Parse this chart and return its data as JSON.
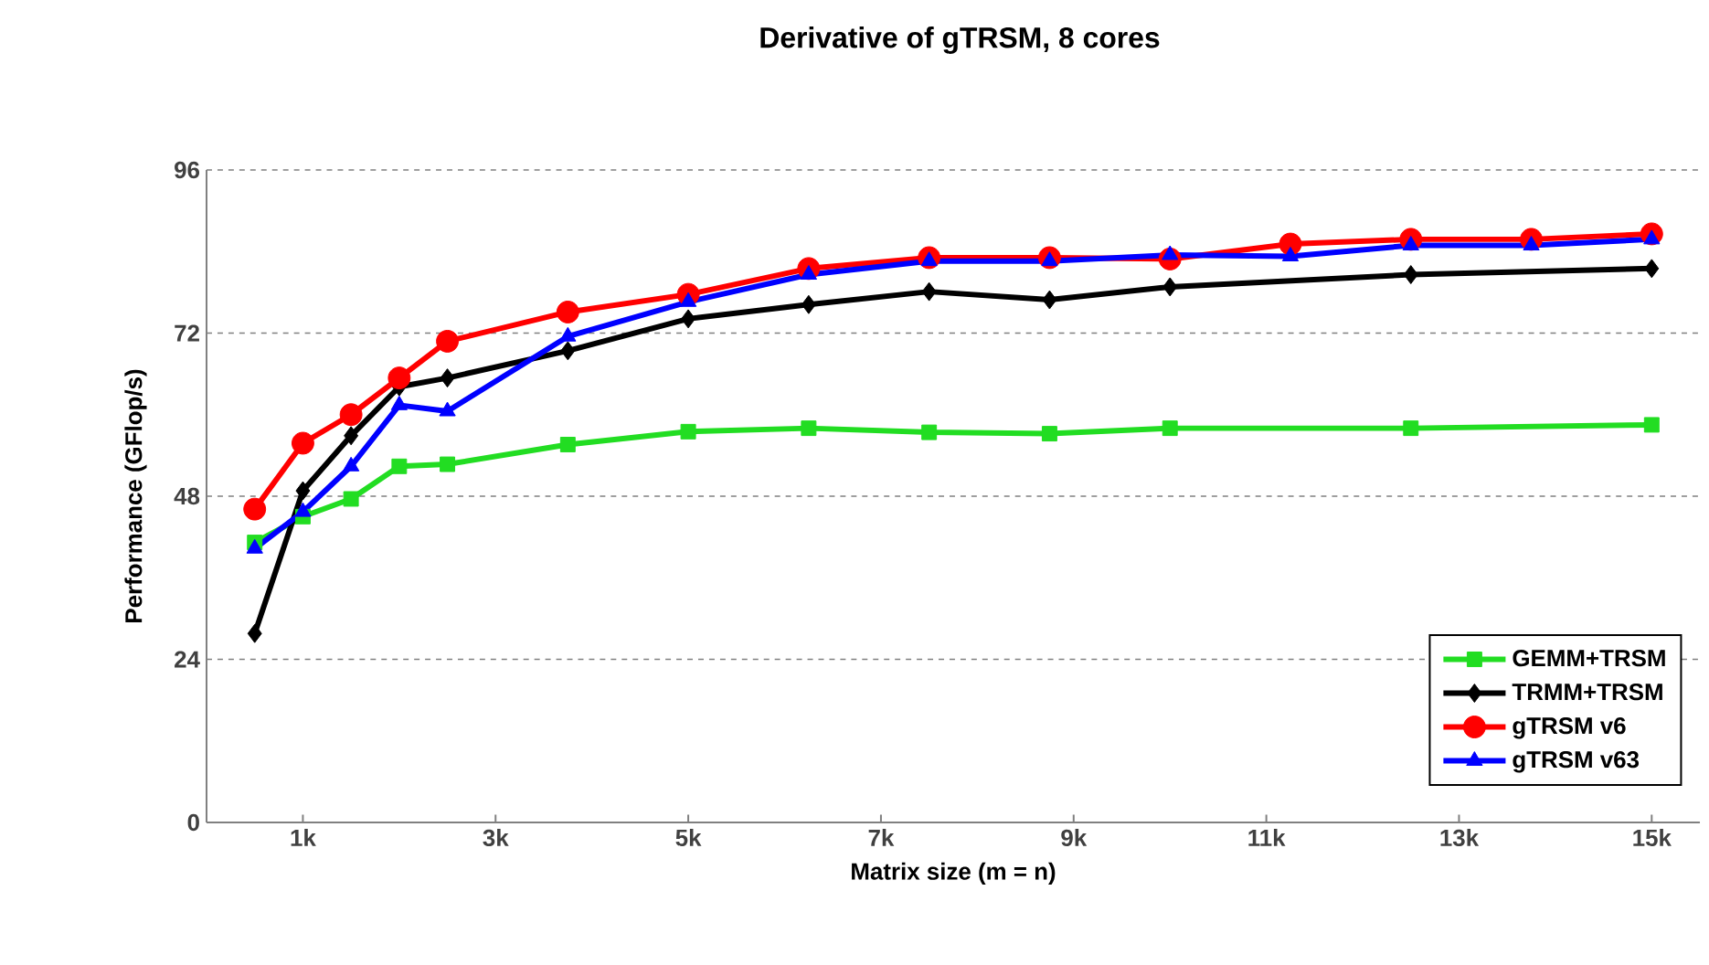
{
  "chart_data": {
    "type": "line",
    "title": "Derivative of gTRSM, 8 cores",
    "xlabel": "Matrix size (m = n)",
    "ylabel": "Performance (GFlop/s)",
    "xlim": [
      0,
      15.5
    ],
    "ylim": [
      0,
      96
    ],
    "xticks": [
      {
        "value": 1,
        "label": "1k"
      },
      {
        "value": 3,
        "label": "3k"
      },
      {
        "value": 5,
        "label": "5k"
      },
      {
        "value": 7,
        "label": "7k"
      },
      {
        "value": 9,
        "label": "9k"
      },
      {
        "value": 11,
        "label": "11k"
      },
      {
        "value": 13,
        "label": "13k"
      },
      {
        "value": 15,
        "label": "15k"
      }
    ],
    "yticks": [
      0,
      24,
      48,
      72,
      96
    ],
    "grid": "y",
    "legend": "bottom right",
    "line_style": "solid",
    "series": [
      {
        "name": "GEMM+TRSM",
        "color": "#22dd22",
        "marker": "square",
        "x": [
          0.5,
          1,
          1.5,
          2,
          2.5,
          3.75,
          5,
          6.25,
          7.5,
          8.75,
          10,
          12.5,
          15
        ],
        "values": [
          41.2,
          45,
          47.6,
          52.4,
          52.7,
          55.6,
          57.5,
          58.0,
          57.4,
          57.2,
          58.0,
          58.0,
          58.5
        ]
      },
      {
        "name": "TRMM+TRSM",
        "color": "#000000",
        "marker": "diamond",
        "x": [
          0.5,
          1,
          1.5,
          2,
          2.5,
          3.75,
          5,
          6.25,
          7.5,
          8.75,
          10,
          12.5,
          15
        ],
        "values": [
          27.8,
          48.8,
          56.9,
          64.1,
          65.4,
          69.4,
          74.1,
          76.2,
          78.1,
          76.9,
          78.8,
          80.6,
          81.5
        ]
      },
      {
        "name": "gTRSM v6",
        "color": "#ff0000",
        "marker": "circle",
        "x": [
          0.5,
          1,
          1.5,
          2,
          2.5,
          3.75,
          5,
          6.25,
          7.5,
          8.75,
          10,
          11.25,
          12.5,
          13.75,
          15
        ],
        "values": [
          46.1,
          55.8,
          60.0,
          65.4,
          70.8,
          75.1,
          77.7,
          81.5,
          83.1,
          83.1,
          82.9,
          85.1,
          85.8,
          85.8,
          86.6
        ]
      },
      {
        "name": "gTRSM v63",
        "color": "#0000ff",
        "marker": "triangle",
        "x": [
          0.5,
          1,
          1.5,
          2,
          2.5,
          3.75,
          5,
          6.25,
          7.5,
          8.75,
          10,
          11.25,
          12.5,
          13.75,
          15
        ],
        "values": [
          40.3,
          45.7,
          52.4,
          61.4,
          60.5,
          71.5,
          76.6,
          80.6,
          82.6,
          82.6,
          83.5,
          83.3,
          84.9,
          84.9,
          85.8
        ]
      }
    ]
  }
}
